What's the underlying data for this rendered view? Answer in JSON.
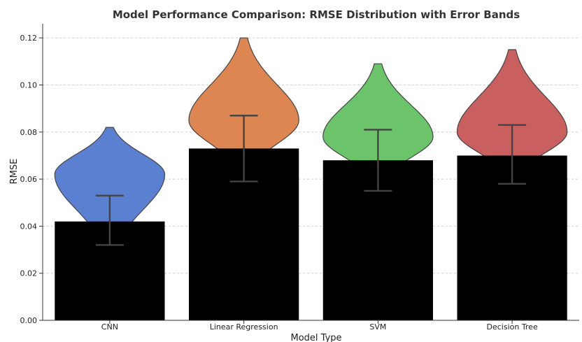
{
  "chart_data": {
    "type": "bar",
    "title": "Model Performance Comparison: RMSE Distribution with Error Bands",
    "xlabel": "Model Type",
    "ylabel": "RMSE",
    "ylim": [
      0,
      0.126
    ],
    "yticks": [
      "0.00",
      "0.02",
      "0.04",
      "0.06",
      "0.08",
      "0.10",
      "0.12"
    ],
    "grid": "horizontal dashed",
    "categories": [
      "CNN",
      "Linear Regression",
      "SVM",
      "Decision Tree"
    ],
    "values": [
      0.042,
      0.073,
      0.068,
      0.07
    ],
    "error_low": [
      0.032,
      0.059,
      0.055,
      0.058
    ],
    "error_high": [
      0.053,
      0.087,
      0.081,
      0.083
    ],
    "violin_top": [
      0.082,
      0.12,
      0.109,
      0.115
    ],
    "violin_mode": [
      0.062,
      0.085,
      0.078,
      0.08
    ],
    "colors": [
      "#5b7fd1",
      "#dd8652",
      "#6cc46a",
      "#c95f5f"
    ],
    "bar_color": "#000000"
  }
}
